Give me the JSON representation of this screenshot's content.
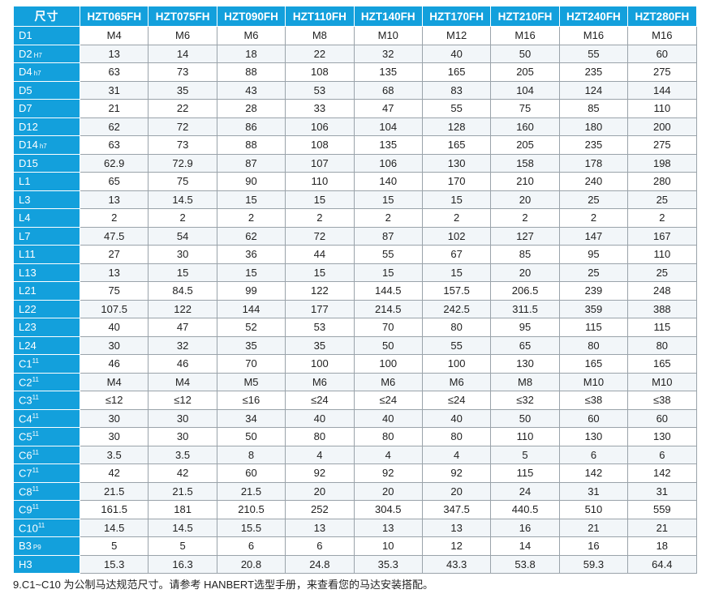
{
  "table": {
    "corner_label": "尺寸",
    "models": [
      "HZT065FH",
      "HZT075FH",
      "HZT090FH",
      "HZT110FH",
      "HZT140FH",
      "HZT170FH",
      "HZT210FH",
      "HZT240FH",
      "HZT280FH"
    ],
    "rows": [
      {
        "label": "D1",
        "suffix": "",
        "values": [
          "M4",
          "M6",
          "M6",
          "M8",
          "M10",
          "M12",
          "M16",
          "M16",
          "M16"
        ]
      },
      {
        "label": "D2",
        "suffix": "H7",
        "values": [
          "13",
          "14",
          "18",
          "22",
          "32",
          "40",
          "50",
          "55",
          "60"
        ]
      },
      {
        "label": "D4",
        "suffix": "h7",
        "values": [
          "63",
          "73",
          "88",
          "108",
          "135",
          "165",
          "205",
          "235",
          "275"
        ]
      },
      {
        "label": "D5",
        "suffix": "",
        "values": [
          "31",
          "35",
          "43",
          "53",
          "68",
          "83",
          "104",
          "124",
          "144"
        ]
      },
      {
        "label": "D7",
        "suffix": "",
        "values": [
          "21",
          "22",
          "28",
          "33",
          "47",
          "55",
          "75",
          "85",
          "110"
        ]
      },
      {
        "label": "D12",
        "suffix": "",
        "values": [
          "62",
          "72",
          "86",
          "106",
          "104",
          "128",
          "160",
          "180",
          "200"
        ]
      },
      {
        "label": "D14",
        "suffix": "h7",
        "values": [
          "63",
          "73",
          "88",
          "108",
          "135",
          "165",
          "205",
          "235",
          "275"
        ]
      },
      {
        "label": "D15",
        "suffix": "",
        "values": [
          "62.9",
          "72.9",
          "87",
          "107",
          "106",
          "130",
          "158",
          "178",
          "198"
        ]
      },
      {
        "label": "L1",
        "suffix": "",
        "values": [
          "65",
          "75",
          "90",
          "110",
          "140",
          "170",
          "210",
          "240",
          "280"
        ]
      },
      {
        "label": "L3",
        "suffix": "",
        "values": [
          "13",
          "14.5",
          "15",
          "15",
          "15",
          "15",
          "20",
          "25",
          "25"
        ]
      },
      {
        "label": "L4",
        "suffix": "",
        "values": [
          "2",
          "2",
          "2",
          "2",
          "2",
          "2",
          "2",
          "2",
          "2"
        ]
      },
      {
        "label": "L7",
        "suffix": "",
        "values": [
          "47.5",
          "54",
          "62",
          "72",
          "87",
          "102",
          "127",
          "147",
          "167"
        ]
      },
      {
        "label": "L11",
        "suffix": "",
        "values": [
          "27",
          "30",
          "36",
          "44",
          "55",
          "67",
          "85",
          "95",
          "110"
        ]
      },
      {
        "label": "L13",
        "suffix": "",
        "values": [
          "13",
          "15",
          "15",
          "15",
          "15",
          "15",
          "20",
          "25",
          "25"
        ]
      },
      {
        "label": "L21",
        "suffix": "",
        "values": [
          "75",
          "84.5",
          "99",
          "122",
          "144.5",
          "157.5",
          "206.5",
          "239",
          "248"
        ]
      },
      {
        "label": "L22",
        "suffix": "",
        "values": [
          "107.5",
          "122",
          "144",
          "177",
          "214.5",
          "242.5",
          "311.5",
          "359",
          "388"
        ]
      },
      {
        "label": "L23",
        "suffix": "",
        "values": [
          "40",
          "47",
          "52",
          "53",
          "70",
          "80",
          "95",
          "115",
          "115"
        ]
      },
      {
        "label": "L24",
        "suffix": "",
        "values": [
          "30",
          "32",
          "35",
          "35",
          "50",
          "55",
          "65",
          "80",
          "80"
        ]
      },
      {
        "label": "C1",
        "sup": "11",
        "values": [
          "46",
          "46",
          "70",
          "100",
          "100",
          "100",
          "130",
          "165",
          "165"
        ]
      },
      {
        "label": "C2",
        "sup": "11",
        "values": [
          "M4",
          "M4",
          "M5",
          "M6",
          "M6",
          "M6",
          "M8",
          "M10",
          "M10"
        ]
      },
      {
        "label": "C3",
        "sup": "11",
        "values": [
          "≤12",
          "≤12",
          "≤16",
          "≤24",
          "≤24",
          "≤24",
          "≤32",
          "≤38",
          "≤38"
        ]
      },
      {
        "label": "C4",
        "sup": "11",
        "values": [
          "30",
          "30",
          "34",
          "40",
          "40",
          "40",
          "50",
          "60",
          "60"
        ]
      },
      {
        "label": "C5",
        "sup": "11",
        "values": [
          "30",
          "30",
          "50",
          "80",
          "80",
          "80",
          "110",
          "130",
          "130"
        ]
      },
      {
        "label": "C6",
        "sup": "11",
        "values": [
          "3.5",
          "3.5",
          "8",
          "4",
          "4",
          "4",
          "5",
          "6",
          "6"
        ]
      },
      {
        "label": "C7",
        "sup": "11",
        "values": [
          "42",
          "42",
          "60",
          "92",
          "92",
          "92",
          "115",
          "142",
          "142"
        ]
      },
      {
        "label": "C8",
        "sup": "11",
        "values": [
          "21.5",
          "21.5",
          "21.5",
          "20",
          "20",
          "20",
          "24",
          "31",
          "31"
        ]
      },
      {
        "label": "C9",
        "sup": "11",
        "values": [
          "161.5",
          "181",
          "210.5",
          "252",
          "304.5",
          "347.5",
          "440.5",
          "510",
          "559"
        ]
      },
      {
        "label": "C10",
        "sup": "11",
        "values": [
          "14.5",
          "14.5",
          "15.5",
          "13",
          "13",
          "13",
          "16",
          "21",
          "21"
        ]
      },
      {
        "label": "B3",
        "suffix": "P9",
        "values": [
          "5",
          "5",
          "6",
          "6",
          "10",
          "12",
          "14",
          "16",
          "18"
        ]
      },
      {
        "label": "H3",
        "suffix": "",
        "values": [
          "15.3",
          "16.3",
          "20.8",
          "24.8",
          "35.3",
          "43.3",
          "53.8",
          "59.3",
          "64.4"
        ]
      }
    ]
  },
  "footnote": "9.C1~C10 为公制马达规范尺寸。请参考 HANBERT选型手册，来查看您的马达安装搭配。"
}
